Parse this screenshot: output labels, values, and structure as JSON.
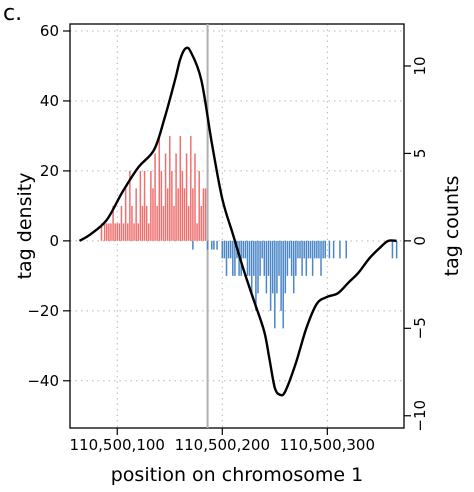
{
  "panel_label": "c.",
  "colors": {
    "positive_counts": "#f07070",
    "negative_counts": "#4a86c8",
    "density_line": "#000000",
    "center_line": "#b0b0b0"
  },
  "chart_data": {
    "type": "line",
    "title": "",
    "xlabel": "position on chromosome 1",
    "ylabel_left": "tag density",
    "ylabel_right": "tag counts",
    "xlim": [
      110500055,
      110500373
    ],
    "ylim_left": [
      -53.5,
      62
    ],
    "ylim_right": [
      -10.7,
      12.4
    ],
    "x_ticks": [
      110500100,
      110500200,
      110500300
    ],
    "x_tick_labels": [
      "110,500,100",
      "110,500,200",
      "110,500,300"
    ],
    "y_left_ticks": [
      -40,
      -20,
      0,
      20,
      40,
      60
    ],
    "y_left_tick_labels": [
      "−40",
      "−20",
      "0",
      "20",
      "40",
      "60"
    ],
    "y_right_ticks": [
      -10,
      -5,
      0,
      5,
      10
    ],
    "y_right_tick_labels": [
      "−10",
      "−5",
      "0",
      "5",
      "10"
    ],
    "grid": true,
    "center_line_x": 110500186,
    "density_curve": {
      "x": [
        110500064,
        110500075,
        110500090,
        110500105,
        110500120,
        110500135,
        110500145,
        110500155,
        110500160,
        110500165,
        110500170,
        110500180,
        110500190,
        110500200,
        110500210,
        110500220,
        110500230,
        110500240,
        110500245,
        110500250,
        110500255,
        110500260,
        110500270,
        110500280,
        110500290,
        110500300,
        110500310,
        110500320,
        110500330,
        110500340,
        110500350,
        110500358,
        110500366
      ],
      "y": [
        0,
        2,
        6,
        14,
        21,
        26,
        35,
        46,
        52,
        55,
        54,
        46,
        28,
        12,
        2,
        -8,
        -17,
        -26,
        -34,
        -42,
        -44,
        -43,
        -35,
        -25,
        -18,
        -16,
        -15,
        -12,
        -9,
        -5,
        -2,
        0,
        0
      ]
    },
    "tag_counts_positive": {
      "x": [
        110500085,
        110500088,
        110500090,
        110500092,
        110500094,
        110500096,
        110500098,
        110500100,
        110500102,
        110500104,
        110500106,
        110500108,
        110500110,
        110500112,
        110500114,
        110500116,
        110500118,
        110500120,
        110500122,
        110500124,
        110500126,
        110500128,
        110500130,
        110500132,
        110500134,
        110500136,
        110500138,
        110500140,
        110500142,
        110500144,
        110500146,
        110500148,
        110500150,
        110500152,
        110500154,
        110500156,
        110500158,
        110500160,
        110500162,
        110500164,
        110500166,
        110500168,
        110500170,
        110500172,
        110500174,
        110500176,
        110500178,
        110500180,
        110500182,
        110500184
      ],
      "y": [
        1,
        1,
        1,
        1,
        1,
        2,
        1,
        1,
        1,
        2,
        1,
        3,
        1,
        4,
        2,
        1,
        3,
        1,
        4,
        2,
        4,
        2,
        1,
        4,
        3,
        5,
        2,
        6,
        4,
        2,
        5,
        3,
        6,
        4,
        2,
        5,
        3,
        6,
        4,
        3,
        5,
        2,
        6,
        3,
        5,
        1,
        4,
        2,
        3,
        3
      ]
    },
    "tag_counts_negative": {
      "x": [
        110500172,
        110500186,
        110500190,
        110500192,
        110500195,
        110500200,
        110500202,
        110500204,
        110500206,
        110500208,
        110500210,
        110500212,
        110500214,
        110500216,
        110500218,
        110500220,
        110500222,
        110500224,
        110500226,
        110500228,
        110500230,
        110500232,
        110500234,
        110500236,
        110500238,
        110500240,
        110500242,
        110500244,
        110500246,
        110500248,
        110500250,
        110500252,
        110500254,
        110500256,
        110500258,
        110500260,
        110500262,
        110500264,
        110500266,
        110500268,
        110500270,
        110500272,
        110500274,
        110500276,
        110500278,
        110500280,
        110500282,
        110500284,
        110500286,
        110500288,
        110500290,
        110500292,
        110500294,
        110500296,
        110500298,
        110500302,
        110500306,
        110500312,
        110500318,
        110500362,
        110500366
      ],
      "y": [
        -0.5,
        -0.5,
        -0.5,
        -0.5,
        -0.5,
        -1,
        -1,
        -2,
        -1,
        -1,
        -2,
        -2,
        -1,
        -2,
        -2,
        -1,
        -1,
        -2,
        -2,
        -3,
        -2,
        -4,
        -3,
        -2,
        -1,
        -2,
        -3,
        -2,
        -4,
        -3,
        -5,
        -3,
        -2,
        -4,
        -5,
        -3,
        -2,
        -1,
        -2,
        -3,
        -2,
        -1,
        -1,
        -2,
        -1,
        -2,
        -1,
        -1,
        -2,
        -1,
        -1,
        -1,
        -2,
        -1,
        -1,
        -1,
        -1,
        -1,
        -1,
        -1,
        -1
      ]
    }
  }
}
